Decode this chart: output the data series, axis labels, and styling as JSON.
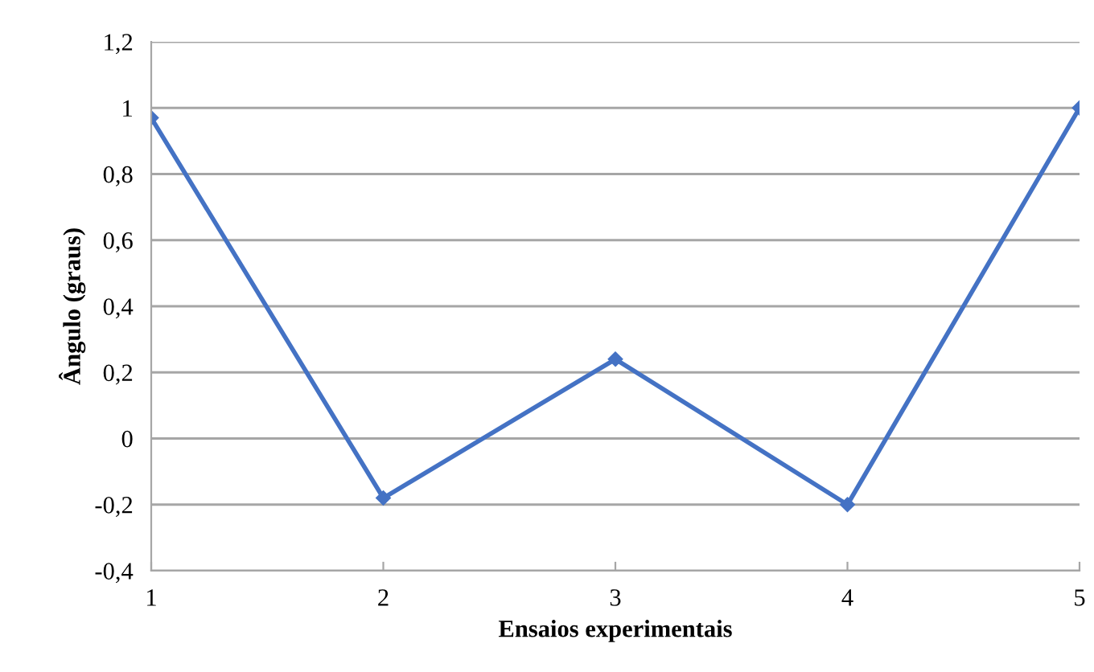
{
  "chart_data": {
    "type": "line",
    "xlabel": "Ensaios experimentais",
    "ylabel": "Ângulo (graus)",
    "categories": [
      "1",
      "2",
      "3",
      "4",
      "5"
    ],
    "series": [
      {
        "color": "#4472c4",
        "values": [
          0.97,
          -0.18,
          0.24,
          -0.2,
          1.0
        ]
      }
    ],
    "ylim": [
      -0.4,
      1.2
    ],
    "yticks": [
      {
        "value": -0.4,
        "label": "-0,4"
      },
      {
        "value": -0.2,
        "label": "-0,2"
      },
      0,
      {
        "value": 0.2,
        "label": "0,2"
      },
      {
        "value": 0.4,
        "label": "0,4"
      },
      {
        "value": 0.6,
        "label": "0,6"
      },
      {
        "value": 0.8,
        "label": "0,8"
      },
      1,
      {
        "value": 1.2,
        "label": "1,2"
      }
    ],
    "grid": "y",
    "legend": false,
    "marker": "diamond",
    "line_style": "solid"
  }
}
